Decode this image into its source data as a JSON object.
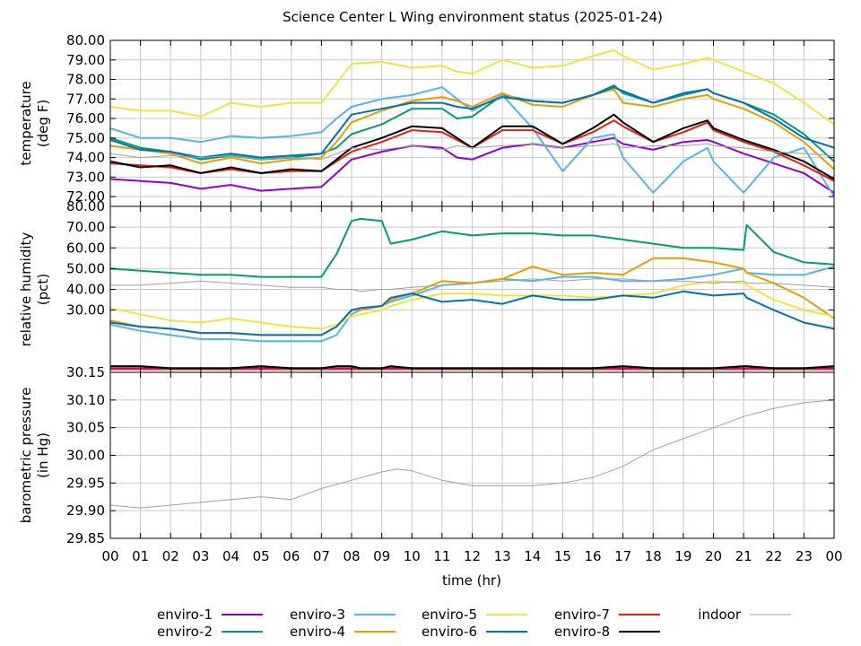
{
  "title": "Science Center L Wing environment status (2025-01-24)",
  "xlabel": "time (hr)",
  "x_ticks": [
    "00",
    "01",
    "02",
    "03",
    "04",
    "05",
    "06",
    "07",
    "08",
    "09",
    "10",
    "11",
    "12",
    "13",
    "14",
    "15",
    "16",
    "17",
    "18",
    "19",
    "20",
    "21",
    "22",
    "23",
    "00"
  ],
  "series_styles": [
    {
      "name": "enviro-1",
      "color": "#9400d3"
    },
    {
      "name": "enviro-2",
      "color": "#009e73"
    },
    {
      "name": "enviro-3",
      "color": "#56b4e9"
    },
    {
      "name": "enviro-4",
      "color": "#e69f00"
    },
    {
      "name": "enviro-5",
      "color": "#f0e442"
    },
    {
      "name": "enviro-6",
      "color": "#0072b2"
    },
    {
      "name": "enviro-7",
      "color": "#e51e10"
    },
    {
      "name": "enviro-8",
      "color": "#000000"
    },
    {
      "name": "indoor",
      "color": "#a0a0a0"
    }
  ],
  "legend": {
    "placement": "bottom"
  },
  "chart_data": [
    {
      "type": "line",
      "ylabel_lines": [
        "temperature",
        "(deg F)"
      ],
      "ylim": [
        71.5,
        80.0
      ],
      "y_ticks": [
        "72.00",
        "73.00",
        "74.00",
        "75.00",
        "76.00",
        "77.00",
        "78.00",
        "79.00",
        "80.00"
      ],
      "grid": true,
      "x": [
        0,
        1,
        2,
        3,
        4,
        5,
        6,
        7,
        7.5,
        8,
        9,
        10,
        11,
        11.5,
        12,
        13,
        14,
        15,
        16,
        16.7,
        17,
        18,
        19,
        19.8,
        20,
        21,
        22,
        23,
        24
      ],
      "series": [
        {
          "name": "enviro-1",
          "values": [
            72.9,
            72.8,
            72.7,
            72.4,
            72.6,
            72.3,
            72.4,
            72.5,
            73.2,
            73.9,
            74.3,
            74.6,
            74.5,
            74.0,
            73.9,
            74.5,
            74.7,
            74.5,
            74.8,
            75.0,
            74.7,
            74.4,
            74.8,
            74.9,
            74.8,
            74.2,
            73.7,
            73.2,
            72.2
          ]
        },
        {
          "name": "enviro-2",
          "values": [
            75.0,
            74.5,
            74.3,
            73.9,
            74.1,
            73.9,
            74.0,
            74.2,
            74.5,
            75.2,
            75.7,
            76.5,
            76.5,
            76.0,
            76.1,
            77.2,
            76.9,
            76.8,
            77.2,
            77.7,
            77.3,
            76.8,
            77.2,
            77.5,
            77.3,
            76.8,
            76.2,
            75.2,
            73.8
          ]
        },
        {
          "name": "enviro-3",
          "values": [
            75.5,
            75.0,
            75.0,
            74.8,
            75.1,
            75.0,
            75.1,
            75.3,
            76.0,
            76.6,
            77.0,
            77.2,
            77.6,
            77.0,
            76.4,
            77.2,
            75.5,
            73.3,
            75.0,
            75.2,
            74.0,
            72.2,
            73.8,
            74.5,
            73.8,
            72.2,
            74.0,
            74.5,
            72.0
          ]
        },
        {
          "name": "enviro-4",
          "values": [
            74.6,
            74.4,
            74.2,
            73.7,
            74.0,
            73.7,
            73.9,
            74.0,
            74.8,
            75.8,
            76.4,
            76.9,
            77.1,
            76.9,
            76.6,
            77.3,
            76.7,
            76.6,
            77.2,
            77.5,
            76.8,
            76.6,
            77.0,
            77.2,
            77.0,
            76.5,
            75.8,
            74.8,
            73.4
          ]
        },
        {
          "name": "enviro-5",
          "values": [
            76.6,
            76.4,
            76.4,
            76.1,
            76.8,
            76.6,
            76.8,
            76.8,
            77.8,
            78.8,
            78.9,
            78.6,
            78.7,
            78.4,
            78.3,
            79.0,
            78.6,
            78.7,
            79.2,
            79.5,
            79.2,
            78.5,
            78.8,
            79.1,
            79.0,
            78.4,
            77.8,
            76.8,
            75.7
          ]
        },
        {
          "name": "enviro-6",
          "values": [
            74.9,
            74.4,
            74.3,
            74.0,
            74.2,
            74.0,
            74.1,
            74.2,
            75.2,
            76.2,
            76.5,
            76.8,
            76.8,
            76.6,
            76.5,
            77.1,
            76.9,
            76.8,
            77.2,
            77.6,
            77.4,
            76.8,
            77.3,
            77.5,
            77.3,
            76.8,
            76.0,
            75.0,
            74.5
          ]
        },
        {
          "name": "enviro-7",
          "values": [
            73.7,
            73.6,
            73.5,
            73.2,
            73.4,
            73.2,
            73.3,
            73.3,
            73.8,
            74.3,
            74.8,
            75.4,
            75.3,
            74.9,
            74.5,
            75.4,
            75.4,
            74.7,
            75.3,
            75.9,
            75.6,
            74.8,
            75.3,
            75.8,
            75.4,
            74.8,
            74.3,
            73.6,
            72.8
          ]
        },
        {
          "name": "enviro-8",
          "values": [
            73.8,
            73.5,
            73.6,
            73.2,
            73.5,
            73.2,
            73.4,
            73.3,
            73.9,
            74.5,
            75.0,
            75.6,
            75.5,
            75.0,
            74.5,
            75.6,
            75.6,
            74.7,
            75.5,
            76.2,
            75.8,
            74.8,
            75.5,
            75.9,
            75.5,
            74.9,
            74.4,
            73.8,
            72.9
          ]
        },
        {
          "name": "indoor",
          "values": [
            74.2,
            74.0,
            74.1,
            74.0,
            74.1,
            73.9,
            74.0,
            73.9,
            74.2,
            74.5,
            74.4,
            74.6,
            74.4,
            74.6,
            74.5,
            74.6,
            74.7,
            74.5,
            74.6,
            74.7,
            74.5,
            74.6,
            74.6,
            74.7,
            74.6,
            74.5,
            74.3,
            74.2,
            74.1
          ]
        }
      ]
    },
    {
      "type": "line",
      "ylabel_lines": [
        "relative humidity",
        "(pct)"
      ],
      "ylim": [
        0,
        80
      ],
      "y_ticks": [
        "30.00",
        "40.00",
        "50.00",
        "60.00",
        "70.00",
        "80.00"
      ],
      "grid": true,
      "x": [
        0,
        1,
        2,
        3,
        4,
        5,
        6,
        7,
        7.5,
        8,
        8.3,
        9,
        9.3,
        10,
        11,
        12,
        13,
        14,
        15,
        16,
        17,
        18,
        19,
        20,
        21,
        21.1,
        22,
        23,
        24
      ],
      "series": [
        {
          "name": "enviro-1",
          "values": [
            2,
            2,
            2,
            2,
            2,
            2,
            2,
            2,
            2,
            2,
            2,
            2,
            2,
            2,
            2,
            2,
            2,
            2,
            2,
            2,
            2,
            2,
            2,
            2,
            2,
            2,
            2,
            2,
            2
          ]
        },
        {
          "name": "enviro-2",
          "values": [
            50,
            49,
            48,
            47,
            47,
            46,
            46,
            46,
            57,
            73,
            74,
            73,
            62,
            64,
            68,
            66,
            67,
            67,
            66,
            66,
            64,
            62,
            60,
            60,
            59,
            71,
            58,
            53,
            52
          ]
        },
        {
          "name": "enviro-3",
          "values": [
            23,
            20,
            18,
            16,
            16,
            15,
            15,
            15,
            18,
            28,
            30,
            32,
            34,
            37,
            42,
            43,
            45,
            44,
            46,
            46,
            44,
            44,
            45,
            47,
            50,
            48,
            47,
            47,
            51
          ]
        },
        {
          "name": "enviro-4",
          "values": [
            25,
            22,
            21,
            19,
            19,
            18,
            18,
            18,
            22,
            30,
            30,
            32,
            35,
            38,
            44,
            43,
            45,
            51,
            47,
            48,
            47,
            55,
            55,
            53,
            50,
            48,
            43,
            36,
            26
          ]
        },
        {
          "name": "enviro-5",
          "values": [
            31,
            28,
            25,
            24,
            26,
            24,
            22,
            21,
            23,
            27,
            28,
            30,
            32,
            35,
            38,
            38,
            37,
            37,
            37,
            36,
            37,
            38,
            42,
            44,
            43,
            42,
            35,
            30,
            27
          ]
        },
        {
          "name": "enviro-6",
          "values": [
            24,
            22,
            21,
            19,
            19,
            18,
            18,
            18,
            22,
            30,
            31,
            32,
            36,
            38,
            34,
            35,
            33,
            37,
            35,
            35,
            37,
            36,
            39,
            37,
            38,
            36,
            30,
            24,
            21
          ]
        },
        {
          "name": "enviro-7",
          "values": [
            1.5,
            1.5,
            1.5,
            1.5,
            1.5,
            1.5,
            1.5,
            1.5,
            1.5,
            1.5,
            1.5,
            1.5,
            1.5,
            1.5,
            1.5,
            1.5,
            1.5,
            1.5,
            1.5,
            1.5,
            1.5,
            1.5,
            1.5,
            1.5,
            1.5,
            1.5,
            1.5,
            1.5,
            1.5
          ]
        },
        {
          "name": "enviro-8",
          "values": [
            3,
            3,
            2,
            2,
            2,
            3,
            2,
            2,
            3,
            3,
            2,
            2,
            3,
            2,
            2,
            2,
            2,
            2,
            2,
            2,
            3,
            2,
            2,
            2,
            3,
            3,
            2,
            2,
            3
          ]
        },
        {
          "name": "indoor",
          "values": [
            42,
            42,
            43,
            44,
            43,
            42,
            41,
            41,
            40,
            40,
            39,
            40,
            40,
            41,
            42,
            43,
            44,
            45,
            44,
            45,
            45,
            44,
            44,
            43,
            44,
            43,
            43,
            42,
            41
          ]
        }
      ]
    },
    {
      "type": "line",
      "ylabel_lines": [
        "barometric pressure",
        "(in Hg)"
      ],
      "ylim": [
        29.85,
        30.15
      ],
      "y_ticks": [
        "29.85",
        "29.90",
        "29.95",
        "30.00",
        "30.05",
        "30.10",
        "30.15"
      ],
      "grid": true,
      "x": [
        0,
        1,
        2,
        3,
        4,
        5,
        6,
        7,
        8,
        9,
        9.5,
        10,
        11,
        12,
        13,
        14,
        15,
        16,
        17,
        18,
        19,
        20,
        21,
        22,
        23,
        24
      ],
      "series": [
        {
          "name": "indoor",
          "values": [
            29.91,
            29.905,
            29.91,
            29.915,
            29.92,
            29.925,
            29.92,
            29.94,
            29.955,
            29.97,
            29.975,
            29.972,
            29.955,
            29.945,
            29.945,
            29.945,
            29.95,
            29.96,
            29.98,
            30.01,
            30.03,
            30.05,
            30.07,
            30.085,
            30.095,
            30.1
          ]
        }
      ]
    }
  ]
}
